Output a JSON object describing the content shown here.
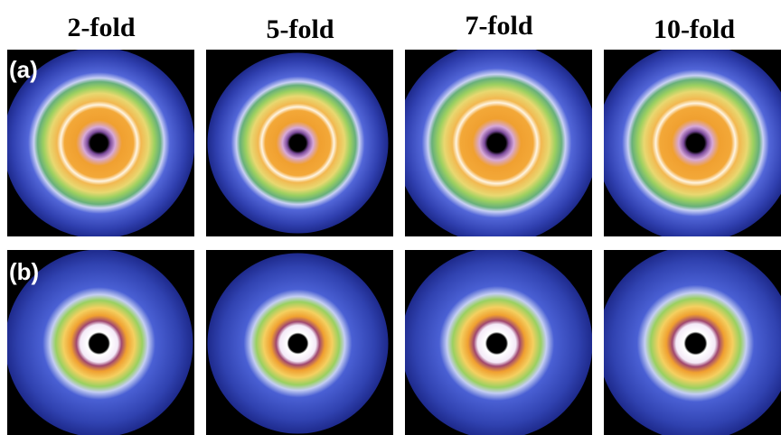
{
  "columns": [
    "2-fold",
    "5-fold",
    "7-fold",
    "10-fold"
  ],
  "rows": [
    "(a)",
    "(b)"
  ]
}
